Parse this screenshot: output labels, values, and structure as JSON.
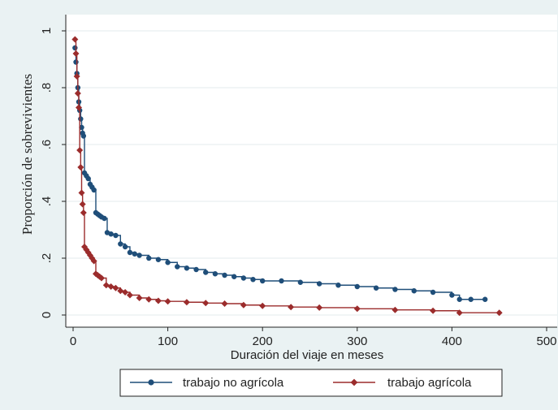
{
  "chart_data": {
    "type": "line",
    "title": "",
    "xlabel": "Duración del viaje en meses",
    "ylabel": "Proporción de sobrevivientes",
    "xlim": [
      0,
      500
    ],
    "ylim": [
      0,
      1
    ],
    "x_ticks": [
      "0",
      "100",
      "200",
      "300",
      "400",
      "500"
    ],
    "y_ticks": [
      "0",
      ".2",
      ".4",
      ".6",
      ".8",
      "1"
    ],
    "grid": "horizontal",
    "legend_position": "bottom",
    "series": [
      {
        "name": "trabajo no agrícola",
        "color": "#1f4e79",
        "marker": "circle",
        "x": [
          2,
          3,
          4,
          5,
          6,
          7,
          8,
          9,
          10,
          11,
          12,
          14,
          16,
          18,
          20,
          22,
          24,
          26,
          28,
          30,
          33,
          36,
          40,
          45,
          50,
          55,
          60,
          65,
          70,
          80,
          90,
          100,
          110,
          120,
          130,
          140,
          150,
          160,
          170,
          180,
          190,
          200,
          220,
          240,
          260,
          280,
          300,
          320,
          340,
          360,
          380,
          400,
          408,
          420,
          435
        ],
        "y": [
          0.94,
          0.89,
          0.85,
          0.8,
          0.75,
          0.72,
          0.69,
          0.66,
          0.64,
          0.63,
          0.5,
          0.49,
          0.48,
          0.46,
          0.45,
          0.44,
          0.36,
          0.355,
          0.35,
          0.345,
          0.34,
          0.29,
          0.285,
          0.28,
          0.25,
          0.24,
          0.22,
          0.215,
          0.21,
          0.2,
          0.195,
          0.185,
          0.17,
          0.165,
          0.16,
          0.15,
          0.145,
          0.14,
          0.135,
          0.13,
          0.125,
          0.12,
          0.12,
          0.115,
          0.11,
          0.105,
          0.1,
          0.095,
          0.09,
          0.085,
          0.08,
          0.07,
          0.055,
          0.055,
          0.055
        ]
      },
      {
        "name": "trabajo agrícola",
        "color": "#9b2c2c",
        "marker": "diamond",
        "x": [
          2,
          3,
          4,
          5,
          6,
          7,
          8,
          9,
          10,
          11,
          12,
          14,
          16,
          18,
          20,
          22,
          24,
          26,
          28,
          30,
          35,
          40,
          45,
          50,
          55,
          60,
          70,
          80,
          90,
          100,
          120,
          140,
          160,
          180,
          200,
          230,
          260,
          300,
          340,
          380,
          408,
          450
        ],
        "y": [
          0.97,
          0.92,
          0.84,
          0.78,
          0.73,
          0.58,
          0.52,
          0.43,
          0.39,
          0.36,
          0.24,
          0.23,
          0.22,
          0.21,
          0.2,
          0.19,
          0.145,
          0.14,
          0.135,
          0.13,
          0.105,
          0.1,
          0.095,
          0.085,
          0.08,
          0.07,
          0.06,
          0.055,
          0.05,
          0.048,
          0.045,
          0.042,
          0.04,
          0.035,
          0.032,
          0.028,
          0.026,
          0.022,
          0.018,
          0.015,
          0.008,
          0.008
        ]
      }
    ]
  }
}
